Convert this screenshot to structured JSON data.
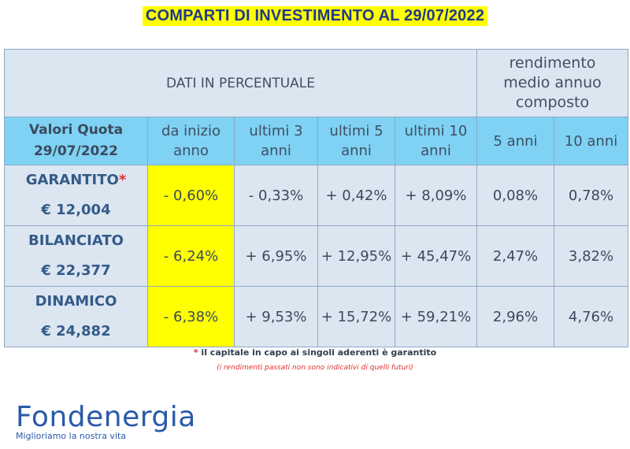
{
  "title": "COMPARTI DI INVESTIMENTO AL 29/07/2022",
  "header": {
    "dati_label": "DATI IN PERCENTUALE",
    "rendimento_label": [
      "rendimento",
      "medio annuo",
      "composto"
    ]
  },
  "columns": {
    "valori_quota": [
      "Valori Quota",
      "29/07/2022"
    ],
    "inizio_anno": [
      "da inizio",
      "anno"
    ],
    "ultimi3": [
      "ultimi 3",
      "anni"
    ],
    "ultimi5": [
      "ultimi 5",
      "anni"
    ],
    "ultimi10": [
      "ultimi 10",
      "anni"
    ],
    "cinque_anni": "5 anni",
    "dieci_anni": "10 anni"
  },
  "rows": [
    {
      "name": "GARANTITO",
      "star": "*",
      "quota": "€ 12,004",
      "inizio": "- 0,60%",
      "u3": "- 0,33%",
      "u5": "+ 0,42%",
      "u10": "+ 8,09%",
      "a5": "0,08%",
      "a10": "0,78%"
    },
    {
      "name": "BILANCIATO",
      "star": "",
      "quota": "€ 22,377",
      "inizio": "- 6,24%",
      "u3": "+ 6,95%",
      "u5": "+ 12,95%",
      "u10": "+ 45,47%",
      "a5": "2,47%",
      "a10": "3,82%"
    },
    {
      "name": "DINAMICO",
      "star": "",
      "quota": "€ 24,882",
      "inizio": "- 6,38%",
      "u3": "+ 9,53%",
      "u5": "+ 15,72%",
      "u10": "+ 59,21%",
      "a5": "2,96%",
      "a10": "4,76%"
    }
  ],
  "notes": {
    "star": "*",
    "garantito": "il capitale in capo ai singoli aderenti è garantito",
    "disclaimer": "(i rendimenti passati non sono indicativi di quelli futuri)"
  },
  "logo": {
    "brand": "Fondenergia",
    "tagline": "Miglioriamo la nostra vita"
  },
  "colors": {
    "highlight": "#ffff00",
    "header_blue": "#7fd2f4",
    "cell_bg": "#dce6f1",
    "brand_blue": "#2a5aa8"
  }
}
